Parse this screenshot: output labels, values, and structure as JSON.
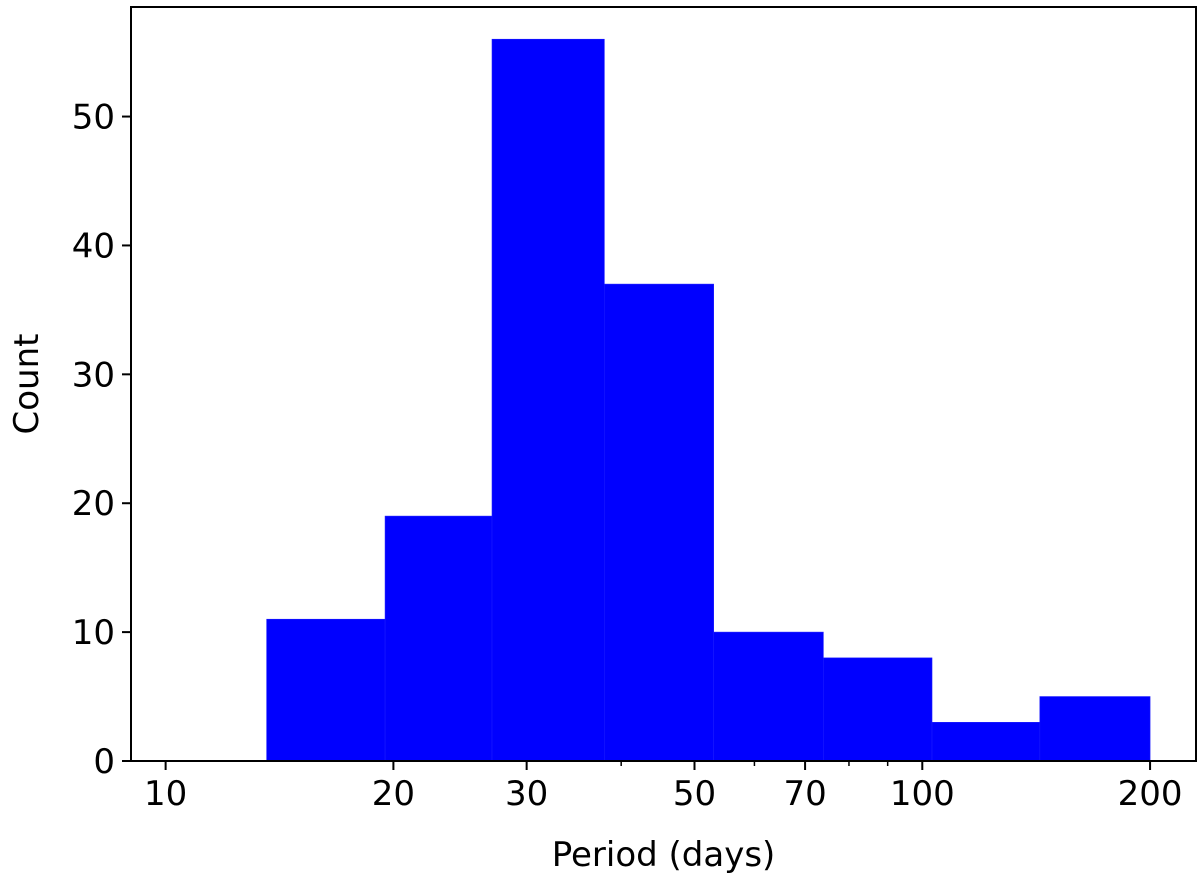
{
  "chart_data": {
    "type": "bar",
    "subtype": "histogram",
    "title": "",
    "xlabel": "Period (days)",
    "ylabel": "Count",
    "xscale": "log",
    "xlim": [
      9.0,
      230.0
    ],
    "ylim": [
      0,
      58.5
    ],
    "bar_color": "#0000ff",
    "bins": [
      {
        "x0": 13.6,
        "x1": 19.5,
        "count": 11
      },
      {
        "x0": 19.5,
        "x1": 27.0,
        "count": 19
      },
      {
        "x0": 27.0,
        "x1": 38.0,
        "count": 56
      },
      {
        "x0": 38.0,
        "x1": 53.0,
        "count": 37
      },
      {
        "x0": 53.0,
        "x1": 74.0,
        "count": 10
      },
      {
        "x0": 74.0,
        "x1": 103.0,
        "count": 8
      },
      {
        "x0": 103.0,
        "x1": 143.0,
        "count": 3
      },
      {
        "x0": 143.0,
        "x1": 200.0,
        "count": 5
      }
    ],
    "x_major_ticks": [
      {
        "value": 10,
        "label": "10"
      },
      {
        "value": 20,
        "label": "20"
      },
      {
        "value": 30,
        "label": "30"
      },
      {
        "value": 50,
        "label": "50"
      },
      {
        "value": 70,
        "label": "70"
      },
      {
        "value": 100,
        "label": "100"
      },
      {
        "value": 200,
        "label": "200"
      }
    ],
    "x_minor_ticks": [
      40,
      60,
      80,
      90
    ],
    "y_ticks": [
      {
        "value": 0,
        "label": "0"
      },
      {
        "value": 10,
        "label": "10"
      },
      {
        "value": 20,
        "label": "20"
      },
      {
        "value": 30,
        "label": "30"
      },
      {
        "value": 40,
        "label": "40"
      },
      {
        "value": 50,
        "label": "50"
      }
    ],
    "grid": false,
    "legend": "none"
  }
}
